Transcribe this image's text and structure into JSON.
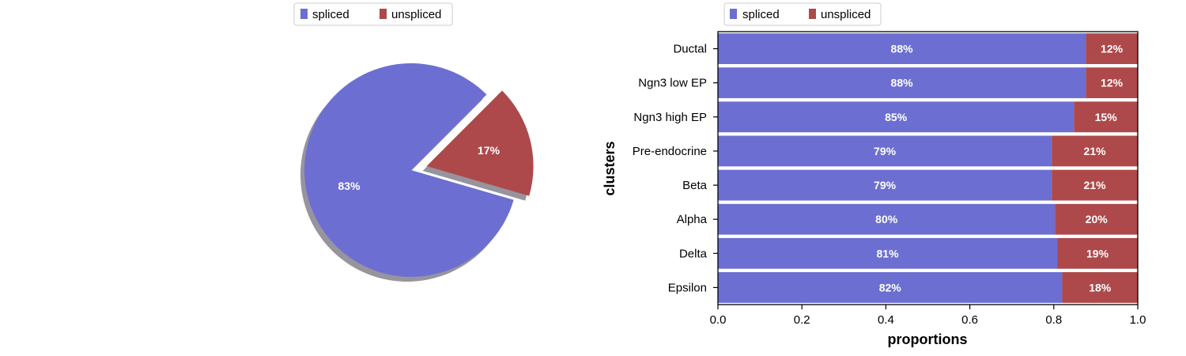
{
  "colors": {
    "spliced": "#6c6fd1",
    "unspliced": "#ad494a",
    "shadow": "#6b6775"
  },
  "chart_data": [
    {
      "type": "pie",
      "title": "",
      "legend": {
        "placement": "top",
        "entries": [
          "spliced",
          "unspliced"
        ]
      },
      "slices": [
        {
          "name": "spliced",
          "value": 83,
          "label": "83%"
        },
        {
          "name": "unspliced",
          "value": 17,
          "label": "17%",
          "exploded": true
        }
      ],
      "shadow": true
    },
    {
      "type": "bar",
      "orientation": "horizontal",
      "stacked": true,
      "title": "",
      "xlabel": "proportions",
      "ylabel": "clusters",
      "xlim": [
        0,
        1
      ],
      "xticks": [
        "0.0",
        "0.2",
        "0.4",
        "0.6",
        "0.8",
        "1.0"
      ],
      "legend": {
        "placement": "top",
        "entries": [
          "spliced",
          "unspliced"
        ]
      },
      "categories": [
        "Ductal",
        "Ngn3 low EP",
        "Ngn3 high EP",
        "Pre-endocrine",
        "Beta",
        "Alpha",
        "Delta",
        "Epsilon"
      ],
      "series": [
        {
          "name": "spliced",
          "values": [
            0.876,
            0.876,
            0.848,
            0.795,
            0.795,
            0.803,
            0.808,
            0.82
          ],
          "labels": [
            "88%",
            "88%",
            "85%",
            "79%",
            "79%",
            "80%",
            "81%",
            "82%"
          ]
        },
        {
          "name": "unspliced",
          "values": [
            0.124,
            0.124,
            0.152,
            0.205,
            0.205,
            0.197,
            0.192,
            0.18
          ],
          "labels": [
            "12%",
            "12%",
            "15%",
            "21%",
            "21%",
            "20%",
            "19%",
            "18%"
          ]
        }
      ]
    }
  ]
}
